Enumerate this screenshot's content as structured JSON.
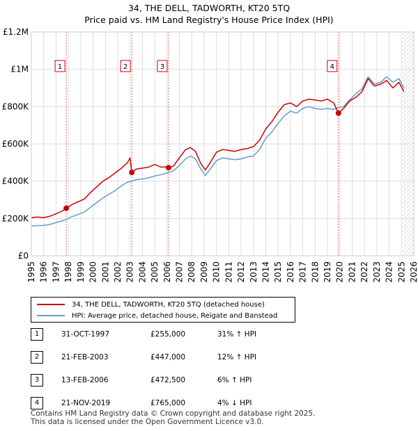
{
  "title": "34, THE DELL, TADWORTH, KT20 5TQ",
  "subtitle": "Price paid vs. HM Land Registry's House Price Index (HPI)",
  "colors": {
    "property": "#cc0000",
    "hpi": "#6699cc"
  },
  "legend": {
    "property_label": "34, THE DELL, TADWORTH, KT20 5TQ (detached house)",
    "hpi_label": "HPI: Average price, detached house, Reigate and Banstead"
  },
  "sales": [
    {
      "num": "1",
      "date": "31-OCT-1997",
      "price": "£255,000",
      "hpi": "31% ↑ HPI"
    },
    {
      "num": "2",
      "date": "21-FEB-2003",
      "price": "£447,000",
      "hpi": "12% ↑ HPI"
    },
    {
      "num": "3",
      "date": "13-FEB-2006",
      "price": "£472,500",
      "hpi": "6% ↑ HPI"
    },
    {
      "num": "4",
      "date": "21-NOV-2019",
      "price": "£765,000",
      "hpi": "4% ↓ HPI"
    }
  ],
  "footer": {
    "line1": "Contains HM Land Registry data © Crown copyright and database right 2025.",
    "line2": "This data is licensed under the Open Government Licence v3.0."
  },
  "chart_data": {
    "type": "line",
    "xlim": [
      1995,
      2026
    ],
    "ylim": [
      0,
      1200000
    ],
    "ytick_values": [
      0,
      200000,
      400000,
      600000,
      800000,
      1000000,
      1200000
    ],
    "ytick_labels": [
      "£0",
      "£200K",
      "£400K",
      "£600K",
      "£800K",
      "£1M",
      "£1.2M"
    ],
    "xtick_labels": [
      "1995",
      "1996",
      "1997",
      "1998",
      "1999",
      "2000",
      "2001",
      "2002",
      "2003",
      "2004",
      "2005",
      "2006",
      "2007",
      "2008",
      "2009",
      "2010",
      "2011",
      "2012",
      "2013",
      "2014",
      "2015",
      "2016",
      "2017",
      "2018",
      "2019",
      "2020",
      "2021",
      "2022",
      "2023",
      "2024",
      "2025",
      "2026"
    ],
    "grid": true,
    "future_data_from": 2025.1,
    "series": [
      {
        "name": "34, THE DELL, TADWORTH, KT20 5TQ (detached house)",
        "x": [
          1995.0,
          1995.5,
          1996.0,
          1996.5,
          1997.0,
          1997.5,
          1997.83,
          1998.3,
          1998.8,
          1999.3,
          1999.8,
          2000.3,
          2000.8,
          2001.3,
          2001.8,
          2002.3,
          2002.8,
          2003.0,
          2003.14,
          2003.5,
          2004.0,
          2004.5,
          2005.0,
          2005.5,
          2006.0,
          2006.12,
          2006.5,
          2007.0,
          2007.5,
          2007.9,
          2008.3,
          2008.7,
          2009.1,
          2009.5,
          2010.0,
          2010.5,
          2011.0,
          2011.5,
          2012.0,
          2012.5,
          2013.0,
          2013.5,
          2014.0,
          2014.5,
          2015.0,
          2015.5,
          2016.0,
          2016.5,
          2017.0,
          2017.5,
          2018.0,
          2018.5,
          2019.0,
          2019.5,
          2019.89,
          2020.3,
          2020.8,
          2021.3,
          2021.8,
          2022.3,
          2022.8,
          2023.3,
          2023.8,
          2024.3,
          2024.8,
          2025.2
        ],
        "values": [
          205000,
          208000,
          205000,
          212000,
          225000,
          240000,
          255000,
          275000,
          290000,
          305000,
          340000,
          370000,
          400000,
          420000,
          445000,
          470000,
          500000,
          525000,
          447000,
          465000,
          470000,
          475000,
          490000,
          475000,
          478000,
          472500,
          480000,
          525000,
          570000,
          580000,
          560000,
          500000,
          460000,
          500000,
          555000,
          570000,
          565000,
          560000,
          570000,
          575000,
          585000,
          620000,
          680000,
          720000,
          770000,
          810000,
          820000,
          800000,
          830000,
          840000,
          835000,
          830000,
          840000,
          820000,
          765000,
          790000,
          830000,
          850000,
          880000,
          950000,
          910000,
          920000,
          940000,
          900000,
          930000,
          880000
        ]
      },
      {
        "name": "HPI: Average price, detached house, Reigate and Banstead",
        "x": [
          1995.0,
          1995.5,
          1996.0,
          1996.5,
          1997.0,
          1997.5,
          1997.83,
          1998.3,
          1998.8,
          1999.3,
          1999.8,
          2000.3,
          2000.8,
          2001.3,
          2001.8,
          2002.3,
          2002.8,
          2003.14,
          2003.5,
          2004.0,
          2004.5,
          2005.0,
          2005.5,
          2006.12,
          2006.5,
          2007.0,
          2007.5,
          2007.9,
          2008.3,
          2008.7,
          2009.1,
          2009.5,
          2010.0,
          2010.5,
          2011.0,
          2011.5,
          2012.0,
          2012.5,
          2013.0,
          2013.5,
          2014.0,
          2014.5,
          2015.0,
          2015.5,
          2016.0,
          2016.5,
          2017.0,
          2017.5,
          2018.0,
          2018.5,
          2019.0,
          2019.5,
          2019.89,
          2020.3,
          2020.8,
          2021.3,
          2021.8,
          2022.3,
          2022.8,
          2023.3,
          2023.8,
          2024.3,
          2024.8,
          2025.2
        ],
        "values": [
          160000,
          162000,
          163000,
          168000,
          178000,
          188000,
          195000,
          210000,
          222000,
          235000,
          260000,
          285000,
          310000,
          330000,
          350000,
          375000,
          395000,
          400000,
          408000,
          412000,
          418000,
          428000,
          435000,
          446000,
          455000,
          485000,
          520000,
          535000,
          520000,
          470000,
          430000,
          465000,
          510000,
          525000,
          520000,
          515000,
          520000,
          530000,
          535000,
          570000,
          630000,
          665000,
          710000,
          750000,
          775000,
          765000,
          790000,
          800000,
          790000,
          785000,
          790000,
          785000,
          795000,
          800000,
          835000,
          870000,
          895000,
          960000,
          920000,
          930000,
          960000,
          930000,
          950000,
          900000
        ]
      }
    ],
    "markers": [
      {
        "label": "1",
        "x": 1997.83,
        "y": 255000
      },
      {
        "label": "2",
        "x": 2003.14,
        "y": 447000
      },
      {
        "label": "3",
        "x": 2006.12,
        "y": 472500
      },
      {
        "label": "4",
        "x": 2019.89,
        "y": 765000
      }
    ]
  }
}
